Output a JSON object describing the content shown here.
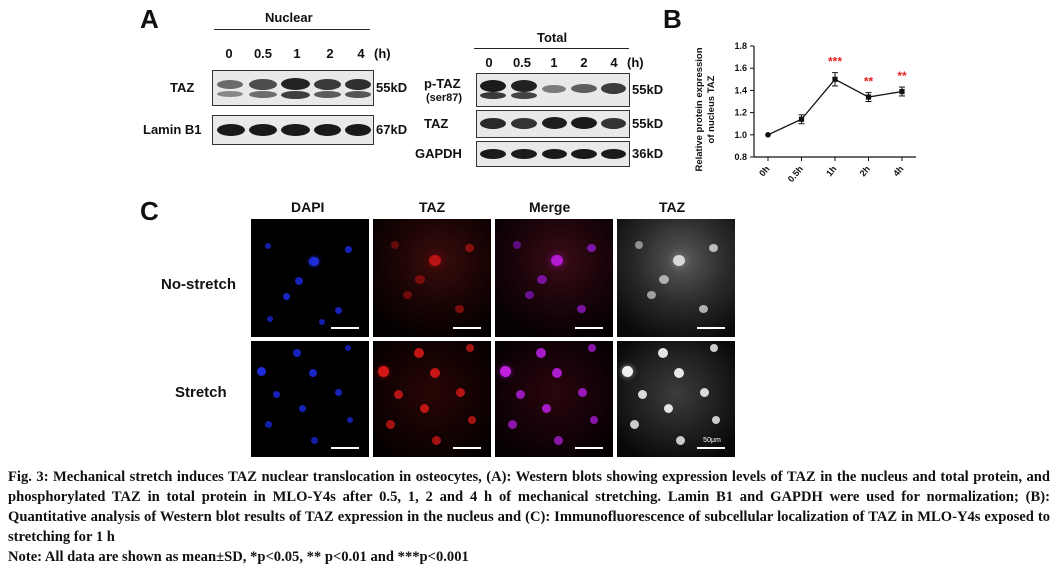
{
  "panel_a": {
    "letter": "A",
    "nuclear": {
      "title": "Nuclear",
      "times": [
        "0",
        "0.5",
        "1",
        "2",
        "4"
      ],
      "unit": "(h)",
      "rows": [
        {
          "protein": "TAZ",
          "size": "55kD"
        },
        {
          "protein": "Lamin B1",
          "size": "67kD"
        }
      ]
    },
    "total": {
      "title": "Total",
      "times": [
        "0",
        "0.5",
        "1",
        "2",
        "4"
      ],
      "unit": "(h)",
      "rows": [
        {
          "protein": "p-TAZ",
          "sub": "(ser87)",
          "size": "55kD"
        },
        {
          "protein": "TAZ",
          "size": "55kD"
        },
        {
          "protein": "GAPDH",
          "size": "36kD"
        }
      ]
    }
  },
  "panel_b": {
    "letter": "B",
    "chart_data": {
      "type": "line",
      "categories": [
        "0h",
        "0.5h",
        "1h",
        "2h",
        "4h"
      ],
      "values": [
        1.0,
        1.14,
        1.5,
        1.34,
        1.39
      ],
      "errors": [
        0.0,
        0.04,
        0.06,
        0.04,
        0.04
      ],
      "significance": [
        "",
        "",
        "***",
        "**",
        "**"
      ],
      "ylabel": "Relative protein expression of nucleus TAZ",
      "ylim": [
        0.8,
        1.8
      ],
      "yticks": [
        "0.8",
        "1.0",
        "1.2",
        "1.4",
        "1.6",
        "1.8"
      ],
      "significance_color": "#e8221e"
    }
  },
  "panel_c": {
    "letter": "C",
    "columns": [
      "DAPI",
      "TAZ",
      "Merge",
      "TAZ"
    ],
    "rows": [
      "No-stretch",
      "Stretch"
    ],
    "scale_label": "50μm"
  },
  "caption": {
    "main": "Fig. 3: Mechanical stretch induces TAZ nuclear translocation in osteocytes, (A): Western blots showing expression levels of TAZ in the nucleus and total protein, and phosphorylated TAZ in total protein in MLO-Y4s after 0.5, 1, 2 and 4 h of mechanical stretching. Lamin B1 and GAPDH were used for normalization; (B): Quantitative analysis of Western blot results of TAZ expression in the nucleus and (C): Immunofluorescence of subcellular localization of TAZ in MLO-Y4s exposed to stretching for 1 h",
    "note": "Note: All data are shown as mean±SD, *p<0.05, ** p<0.01 and ***p<0.001"
  }
}
